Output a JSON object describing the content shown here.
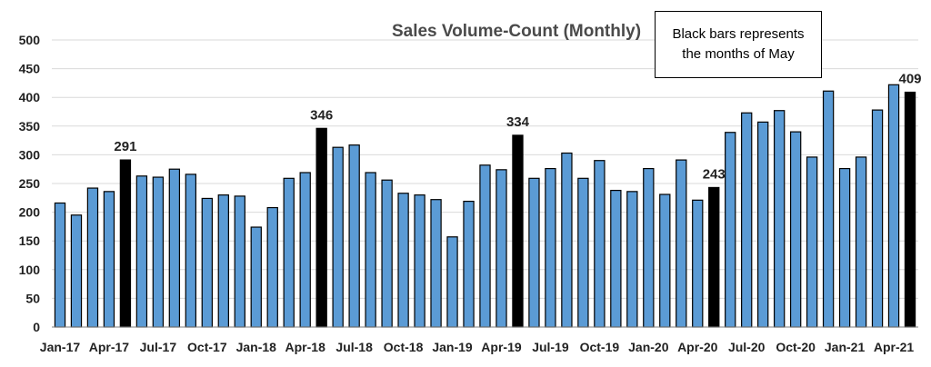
{
  "chart_data": {
    "type": "bar",
    "title": "Sales Volume-Count (Monthly)",
    "xlabel": "",
    "ylabel": "",
    "ylim": [
      0,
      500
    ],
    "yticks": [
      0,
      50,
      100,
      150,
      200,
      250,
      300,
      350,
      400,
      450,
      500
    ],
    "grid": true,
    "annotation": "Black bars represents the months of May",
    "categories": [
      "Jan-17",
      "Feb-17",
      "Mar-17",
      "Apr-17",
      "May-17",
      "Jun-17",
      "Jul-17",
      "Aug-17",
      "Sep-17",
      "Oct-17",
      "Nov-17",
      "Dec-17",
      "Jan-18",
      "Feb-18",
      "Mar-18",
      "Apr-18",
      "May-18",
      "Jun-18",
      "Jul-18",
      "Aug-18",
      "Sep-18",
      "Oct-18",
      "Nov-18",
      "Dec-18",
      "Jan-19",
      "Feb-19",
      "Mar-19",
      "Apr-19",
      "May-19",
      "Jun-19",
      "Jul-19",
      "Aug-19",
      "Sep-19",
      "Oct-19",
      "Nov-19",
      "Dec-19",
      "Jan-20",
      "Feb-20",
      "Mar-20",
      "Apr-20",
      "May-20",
      "Jun-20",
      "Jul-20",
      "Aug-20",
      "Sep-20",
      "Oct-20",
      "Nov-20",
      "Dec-20",
      "Jan-21",
      "Feb-21",
      "Mar-21",
      "Apr-21",
      "May-21"
    ],
    "x_tick_labels": [
      "Jan-17",
      "Apr-17",
      "Jul-17",
      "Oct-17",
      "Jan-18",
      "Apr-18",
      "Jul-18",
      "Oct-18",
      "Jan-19",
      "Apr-19",
      "Jul-19",
      "Oct-19",
      "Jan-20",
      "Apr-20",
      "Jul-20",
      "Oct-20",
      "Jan-21",
      "Apr-21"
    ],
    "values": [
      216,
      195,
      242,
      236,
      291,
      263,
      261,
      275,
      266,
      224,
      230,
      228,
      174,
      208,
      259,
      269,
      346,
      313,
      317,
      269,
      256,
      233,
      230,
      222,
      157,
      219,
      282,
      274,
      334,
      259,
      276,
      303,
      259,
      290,
      238,
      236,
      276,
      231,
      291,
      221,
      243,
      339,
      373,
      357,
      377,
      340,
      296,
      411,
      276,
      296,
      378,
      422,
      409
    ],
    "highlight_months": [
      "May-17",
      "May-18",
      "May-19",
      "May-20",
      "May-21"
    ],
    "data_labels": [
      {
        "category": "May-17",
        "text": "291"
      },
      {
        "category": "May-18",
        "text": "346"
      },
      {
        "category": "May-19",
        "text": "334"
      },
      {
        "category": "May-20",
        "text": "243"
      },
      {
        "category": "May-21",
        "text": "409"
      }
    ],
    "colors": {
      "bar": "#5b9bd5",
      "highlight": "#000000",
      "grid": "#d9d9d9",
      "text": "#222222",
      "title": "#4a4a4a"
    }
  }
}
